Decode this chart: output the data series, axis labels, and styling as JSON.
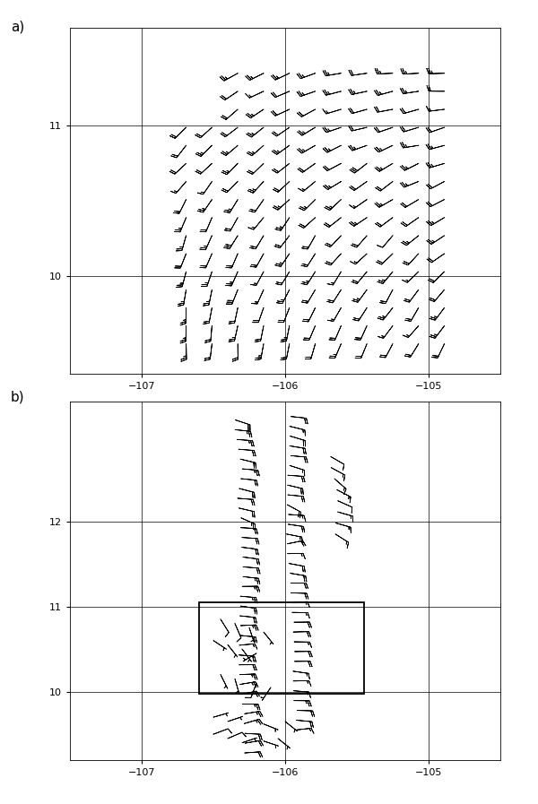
{
  "panel_a": {
    "xlim": [
      -107.5,
      -104.5
    ],
    "ylim": [
      9.35,
      11.65
    ],
    "xticks": [
      -107,
      -106,
      -105
    ],
    "yticks": [
      10,
      11
    ],
    "label": "a)"
  },
  "panel_b": {
    "xlim": [
      -107.5,
      -104.5
    ],
    "ylim": [
      9.2,
      13.4
    ],
    "xticks": [
      -107,
      -106,
      -105
    ],
    "yticks": [
      10,
      11,
      12
    ],
    "label": "b)",
    "rect_x0": -106.6,
    "rect_y0": 9.97,
    "rect_x1": -105.45,
    "rect_y1": 11.05
  },
  "background_color": "#ffffff",
  "figsize": [
    6.0,
    8.97
  ],
  "dpi": 100
}
